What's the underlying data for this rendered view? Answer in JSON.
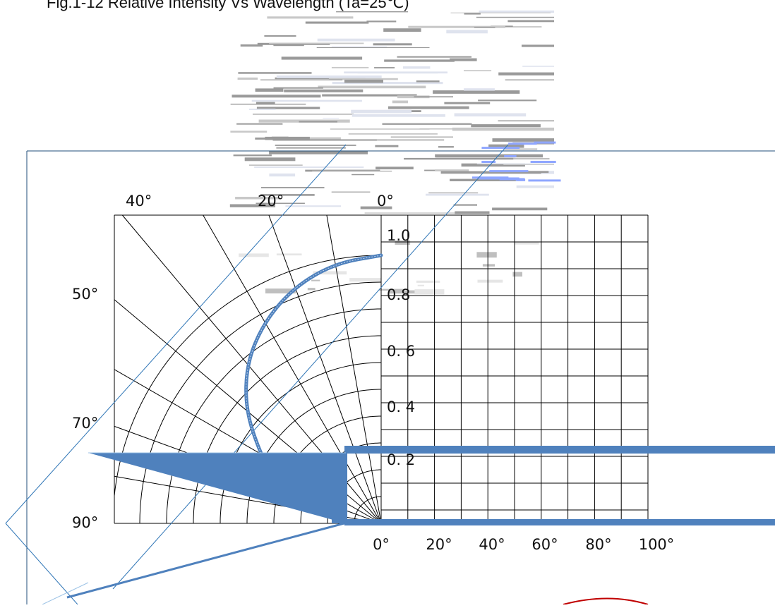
{
  "title": "Fig.1-12 Relative Intensity Vs Wavelength (Ta=25℃)",
  "colors": {
    "curve": "#4f81bd",
    "grid": "#000000",
    "frame": "#1f4e79",
    "marker": "#c00000"
  },
  "chart_data": {
    "type": "polar-radiation",
    "title": "",
    "angle_labels_left": [
      "40°",
      "20°",
      "0°",
      "50°",
      "70°",
      "90°"
    ],
    "radial_labels": [
      "1.0",
      "0.8",
      "0. 6",
      "0. 4",
      "0. 2"
    ],
    "x_tick_labels": [
      "0°",
      "20°",
      "40°",
      "60°",
      "80°",
      "100°"
    ],
    "radial_range": [
      0,
      1.0
    ],
    "angle_range_deg": [
      0,
      90
    ],
    "grid": true,
    "series": [
      {
        "angle_deg": [
          0,
          10,
          20,
          30,
          40,
          50,
          60,
          65
        ],
        "relative_intensity": [
          1.0,
          0.985,
          0.94,
          0.87,
          0.78,
          0.66,
          0.52,
          0.45
        ]
      }
    ]
  }
}
